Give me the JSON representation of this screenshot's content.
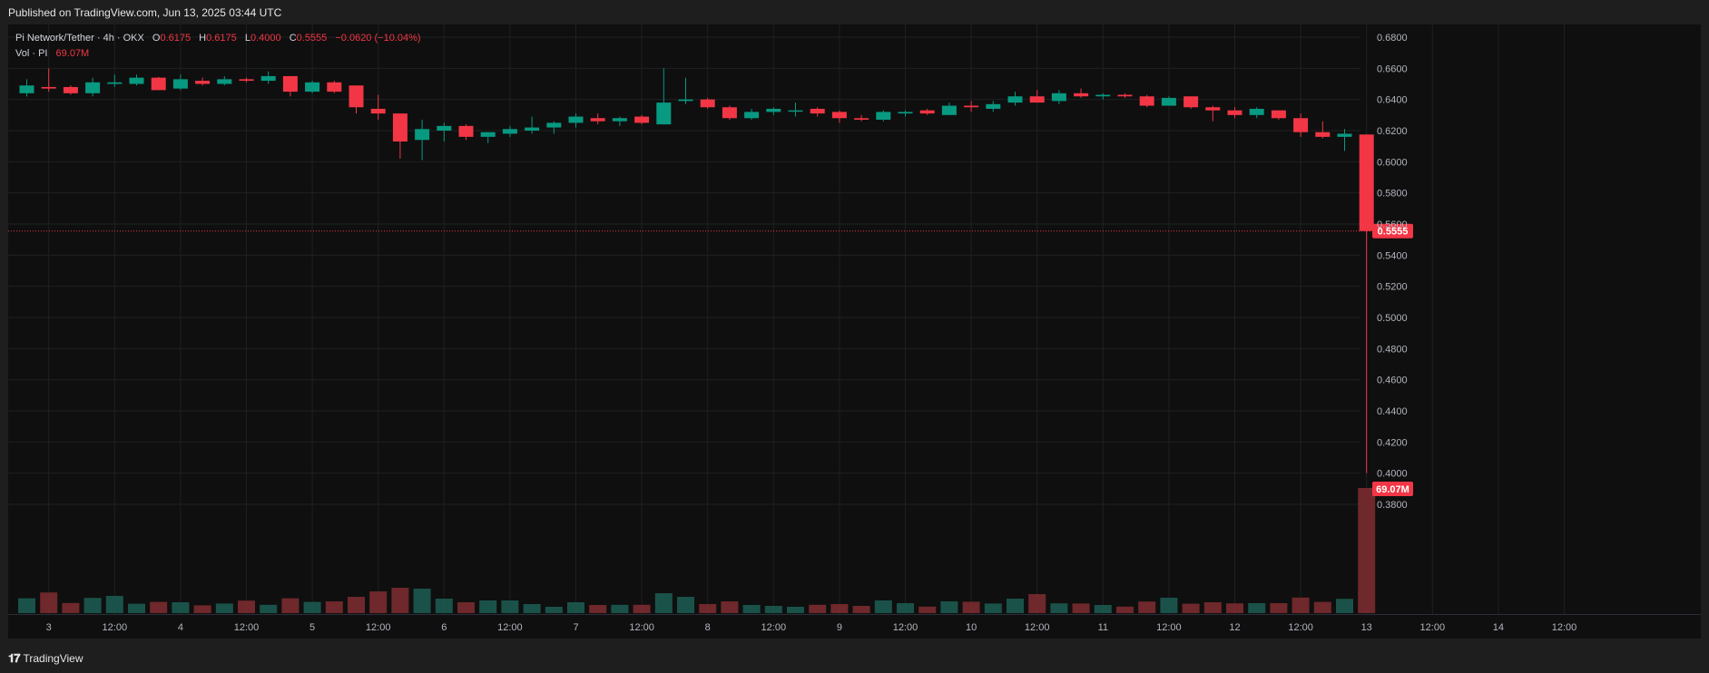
{
  "header": {
    "published": "Published on TradingView.com, Jun 13, 2025 03:44 UTC"
  },
  "legend": {
    "title": "Pi Network/Tether · 4h · OKX",
    "o_label": "O",
    "o_value": "0.6175",
    "h_label": "H",
    "h_value": "0.6175",
    "l_label": "L",
    "l_value": "0.4000",
    "c_label": "C",
    "c_value": "0.5555",
    "change": "−0.0620 (−10.04%)",
    "vol_label": "Vol · PI",
    "vol_value": "69.07M"
  },
  "badges": {
    "price": "0.5555",
    "volume": "69.07M"
  },
  "footer": {
    "brand": "TradingView",
    "logo": "TV-logo-icon"
  },
  "colors": {
    "up": "#089981",
    "down": "#f23645",
    "background": "#0f0f0f",
    "grid": "#1f2023",
    "text": "#b2b5be"
  },
  "chart_data": {
    "type": "candlestick",
    "title": "Pi Network/Tether · 4h · OKX",
    "interval": "4h",
    "ylim": [
      0.37,
      0.69
    ],
    "y_ticks": [
      "0.6800",
      "0.6600",
      "0.6400",
      "0.6200",
      "0.6000",
      "0.5800",
      "0.5600",
      "0.5400",
      "0.5200",
      "0.5000",
      "0.4800",
      "0.4600",
      "0.4400",
      "0.4200",
      "0.4000",
      "0.3800"
    ],
    "x_ticks": [
      "3",
      "12:00",
      "4",
      "12:00",
      "5",
      "12:00",
      "6",
      "12:00",
      "7",
      "12:00",
      "8",
      "12:00",
      "9",
      "12:00",
      "10",
      "12:00",
      "11",
      "12:00",
      "12",
      "12:00",
      "13",
      "12:00",
      "14",
      "12:00"
    ],
    "last_price": 0.5555,
    "candles": [
      {
        "o": 0.644,
        "h": 0.653,
        "l": 0.642,
        "c": 0.649
      },
      {
        "o": 0.648,
        "h": 0.66,
        "l": 0.645,
        "c": 0.647
      },
      {
        "o": 0.648,
        "h": 0.649,
        "l": 0.643,
        "c": 0.644
      },
      {
        "o": 0.644,
        "h": 0.654,
        "l": 0.642,
        "c": 0.651
      },
      {
        "o": 0.65,
        "h": 0.656,
        "l": 0.648,
        "c": 0.651
      },
      {
        "o": 0.65,
        "h": 0.656,
        "l": 0.649,
        "c": 0.654
      },
      {
        "o": 0.654,
        "h": 0.6545,
        "l": 0.646,
        "c": 0.646
      },
      {
        "o": 0.647,
        "h": 0.656,
        "l": 0.646,
        "c": 0.653
      },
      {
        "o": 0.652,
        "h": 0.654,
        "l": 0.649,
        "c": 0.65
      },
      {
        "o": 0.65,
        "h": 0.655,
        "l": 0.649,
        "c": 0.653
      },
      {
        "o": 0.653,
        "h": 0.654,
        "l": 0.651,
        "c": 0.652
      },
      {
        "o": 0.652,
        "h": 0.658,
        "l": 0.65,
        "c": 0.655
      },
      {
        "o": 0.655,
        "h": 0.655,
        "l": 0.642,
        "c": 0.645
      },
      {
        "o": 0.645,
        "h": 0.652,
        "l": 0.644,
        "c": 0.651
      },
      {
        "o": 0.651,
        "h": 0.652,
        "l": 0.644,
        "c": 0.645
      },
      {
        "o": 0.649,
        "h": 0.649,
        "l": 0.631,
        "c": 0.635
      },
      {
        "o": 0.634,
        "h": 0.643,
        "l": 0.627,
        "c": 0.631
      },
      {
        "o": 0.631,
        "h": 0.631,
        "l": 0.602,
        "c": 0.613
      },
      {
        "o": 0.614,
        "h": 0.627,
        "l": 0.601,
        "c": 0.621
      },
      {
        "o": 0.62,
        "h": 0.625,
        "l": 0.613,
        "c": 0.623
      },
      {
        "o": 0.623,
        "h": 0.624,
        "l": 0.614,
        "c": 0.616
      },
      {
        "o": 0.616,
        "h": 0.619,
        "l": 0.612,
        "c": 0.619
      },
      {
        "o": 0.618,
        "h": 0.623,
        "l": 0.616,
        "c": 0.621
      },
      {
        "o": 0.62,
        "h": 0.629,
        "l": 0.618,
        "c": 0.622
      },
      {
        "o": 0.622,
        "h": 0.626,
        "l": 0.618,
        "c": 0.625
      },
      {
        "o": 0.625,
        "h": 0.631,
        "l": 0.622,
        "c": 0.629
      },
      {
        "o": 0.628,
        "h": 0.631,
        "l": 0.624,
        "c": 0.626
      },
      {
        "o": 0.626,
        "h": 0.629,
        "l": 0.623,
        "c": 0.628
      },
      {
        "o": 0.629,
        "h": 0.63,
        "l": 0.624,
        "c": 0.625
      },
      {
        "o": 0.624,
        "h": 0.66,
        "l": 0.624,
        "c": 0.638
      },
      {
        "o": 0.639,
        "h": 0.654,
        "l": 0.637,
        "c": 0.64
      },
      {
        "o": 0.64,
        "h": 0.641,
        "l": 0.634,
        "c": 0.635
      },
      {
        "o": 0.635,
        "h": 0.636,
        "l": 0.627,
        "c": 0.628
      },
      {
        "o": 0.628,
        "h": 0.634,
        "l": 0.627,
        "c": 0.632
      },
      {
        "o": 0.632,
        "h": 0.635,
        "l": 0.63,
        "c": 0.634
      },
      {
        "o": 0.633,
        "h": 0.638,
        "l": 0.629,
        "c": 0.633
      },
      {
        "o": 0.634,
        "h": 0.635,
        "l": 0.629,
        "c": 0.631
      },
      {
        "o": 0.632,
        "h": 0.633,
        "l": 0.625,
        "c": 0.628
      },
      {
        "o": 0.628,
        "h": 0.63,
        "l": 0.626,
        "c": 0.627
      },
      {
        "o": 0.627,
        "h": 0.633,
        "l": 0.626,
        "c": 0.632
      },
      {
        "o": 0.631,
        "h": 0.633,
        "l": 0.629,
        "c": 0.632
      },
      {
        "o": 0.633,
        "h": 0.634,
        "l": 0.63,
        "c": 0.631
      },
      {
        "o": 0.63,
        "h": 0.638,
        "l": 0.63,
        "c": 0.636
      },
      {
        "o": 0.636,
        "h": 0.639,
        "l": 0.632,
        "c": 0.635
      },
      {
        "o": 0.634,
        "h": 0.639,
        "l": 0.632,
        "c": 0.637
      },
      {
        "o": 0.638,
        "h": 0.645,
        "l": 0.636,
        "c": 0.642
      },
      {
        "o": 0.642,
        "h": 0.646,
        "l": 0.638,
        "c": 0.638
      },
      {
        "o": 0.639,
        "h": 0.646,
        "l": 0.637,
        "c": 0.644
      },
      {
        "o": 0.644,
        "h": 0.647,
        "l": 0.641,
        "c": 0.642
      },
      {
        "o": 0.642,
        "h": 0.644,
        "l": 0.64,
        "c": 0.643
      },
      {
        "o": 0.643,
        "h": 0.644,
        "l": 0.641,
        "c": 0.642
      },
      {
        "o": 0.642,
        "h": 0.643,
        "l": 0.635,
        "c": 0.636
      },
      {
        "o": 0.636,
        "h": 0.642,
        "l": 0.636,
        "c": 0.641
      },
      {
        "o": 0.642,
        "h": 0.642,
        "l": 0.634,
        "c": 0.635
      },
      {
        "o": 0.635,
        "h": 0.636,
        "l": 0.626,
        "c": 0.633
      },
      {
        "o": 0.633,
        "h": 0.635,
        "l": 0.628,
        "c": 0.63
      },
      {
        "o": 0.63,
        "h": 0.635,
        "l": 0.628,
        "c": 0.634
      },
      {
        "o": 0.633,
        "h": 0.633,
        "l": 0.627,
        "c": 0.628
      },
      {
        "o": 0.628,
        "h": 0.631,
        "l": 0.616,
        "c": 0.619
      },
      {
        "o": 0.619,
        "h": 0.626,
        "l": 0.615,
        "c": 0.616
      },
      {
        "o": 0.616,
        "h": 0.621,
        "l": 0.607,
        "c": 0.618
      },
      {
        "o": 0.6175,
        "h": 0.6175,
        "l": 0.4,
        "c": 0.5555
      }
    ],
    "volume": {
      "name": "Vol · PI",
      "last": "69.07M",
      "values_m": [
        8.2,
        11.4,
        5.6,
        8.4,
        9.5,
        5.2,
        6.2,
        6.0,
        4.3,
        5.3,
        6.9,
        4.6,
        8.2,
        6.2,
        6.5,
        9.0,
        12.0,
        14.0,
        13.5,
        8.0,
        6.0,
        7.0,
        7.0,
        5.0,
        3.5,
        6.0,
        4.5,
        4.6,
        4.6,
        11.0,
        9.0,
        5.0,
        6.5,
        4.5,
        4.0,
        3.5,
        4.6,
        5.0,
        4.0,
        7.0,
        5.5,
        3.6,
        6.5,
        6.3,
        5.3,
        8.0,
        10.5,
        5.4,
        5.3,
        4.5,
        3.6,
        6.4,
        8.5,
        5.2,
        6.0,
        5.4,
        5.5,
        5.5,
        8.6,
        6.2,
        7.9,
        69.07
      ]
    }
  }
}
